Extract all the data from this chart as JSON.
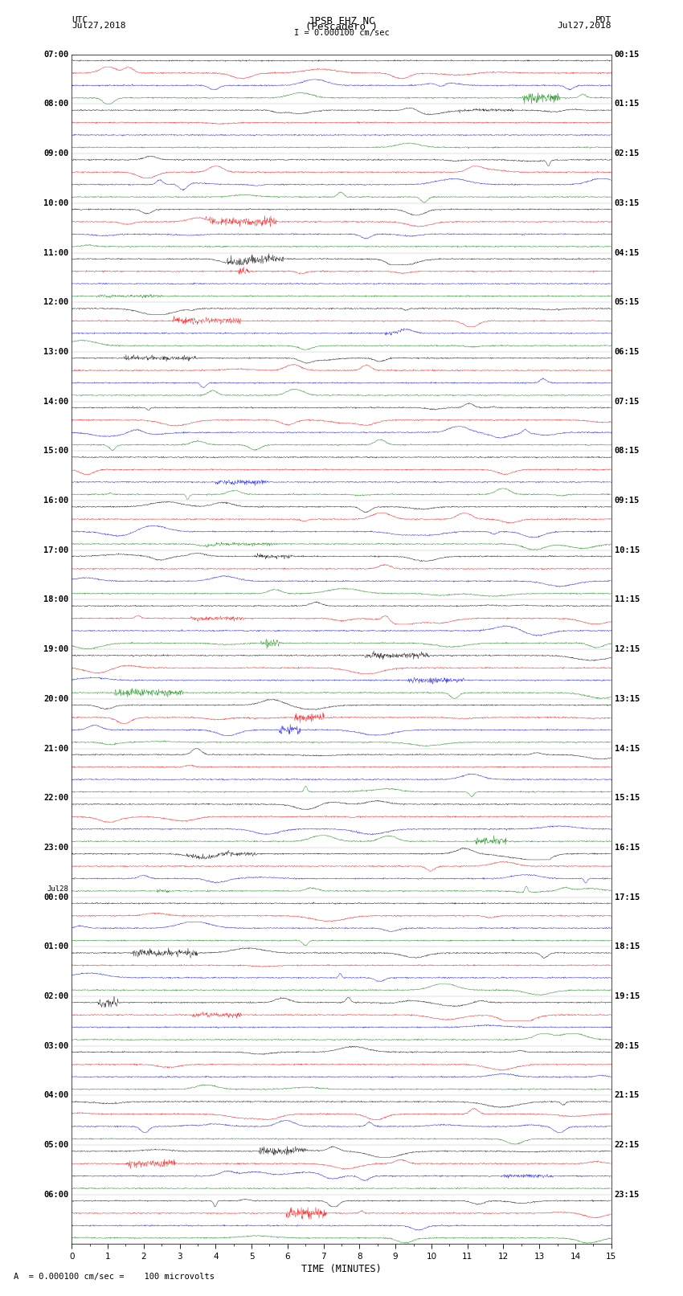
{
  "title_line1": "JPSB EHZ NC",
  "title_line2": "(Pescadero )",
  "scale_text": "I = 0.000100 cm/sec",
  "footer_text": "A  = 0.000100 cm/sec =    100 microvolts",
  "utc_label1": "UTC",
  "utc_label2": "Jul27,2018",
  "pdt_label1": "PDT",
  "pdt_label2": "Jul27,2018",
  "xlabel": "TIME (MINUTES)",
  "left_times": [
    "07:00",
    "08:00",
    "09:00",
    "10:00",
    "11:00",
    "12:00",
    "13:00",
    "14:00",
    "15:00",
    "16:00",
    "17:00",
    "18:00",
    "19:00",
    "20:00",
    "21:00",
    "22:00",
    "23:00",
    "00:00",
    "01:00",
    "02:00",
    "03:00",
    "04:00",
    "05:00",
    "06:00"
  ],
  "jul28_row": 17,
  "right_times": [
    "00:15",
    "01:15",
    "02:15",
    "03:15",
    "04:15",
    "05:15",
    "06:15",
    "07:15",
    "08:15",
    "09:15",
    "10:15",
    "11:15",
    "12:15",
    "13:15",
    "14:15",
    "15:15",
    "16:15",
    "17:15",
    "18:15",
    "19:15",
    "20:15",
    "21:15",
    "22:15",
    "23:15"
  ],
  "n_rows": 24,
  "traces_per_row": 4,
  "colors": [
    "black",
    "red",
    "blue",
    "green"
  ],
  "bg_color": "white",
  "minutes": 15,
  "n_pts": 1500,
  "figsize": [
    8.5,
    16.13
  ],
  "dpi": 100
}
